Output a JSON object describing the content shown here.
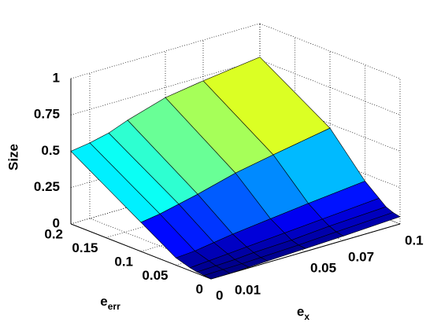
{
  "chart_data": {
    "type": "surface",
    "x": [
      0,
      0.01,
      0.02,
      0.03,
      0.05,
      0.07,
      0.1
    ],
    "y": [
      0,
      0.01,
      0.02,
      0.03,
      0.05,
      0.1,
      0.2
    ],
    "z": [
      [
        0,
        0,
        0.005,
        0.01,
        0.02,
        0.03,
        0.05
      ],
      [
        0.005,
        0.008,
        0.01,
        0.015,
        0.025,
        0.04,
        0.06
      ],
      [
        0.01,
        0.015,
        0.02,
        0.03,
        0.04,
        0.06,
        0.08
      ],
      [
        0.02,
        0.03,
        0.04,
        0.05,
        0.07,
        0.09,
        0.12
      ],
      [
        0.05,
        0.06,
        0.08,
        0.1,
        0.13,
        0.16,
        0.2
      ],
      [
        0.2,
        0.22,
        0.25,
        0.28,
        0.35,
        0.4,
        0.47
      ],
      [
        0.5,
        0.52,
        0.55,
        0.6,
        0.68,
        0.72,
        0.77
      ]
    ],
    "xlim": [
      0,
      0.1
    ],
    "ylim": [
      0,
      0.2
    ],
    "zlim": [
      0,
      1
    ],
    "xticks": [
      0,
      0.01,
      0.05,
      0.07,
      0.1
    ],
    "yticks": [
      0,
      0.05,
      0.1,
      0.15,
      0.2
    ],
    "zticks": [
      0,
      0.25,
      0.5,
      0.75,
      1
    ],
    "xlabel": {
      "base": "e",
      "sub": "x"
    },
    "ylabel": {
      "base": "e",
      "sub": "err"
    },
    "zlabel": "Size",
    "colormap": "jet",
    "grid": true
  }
}
